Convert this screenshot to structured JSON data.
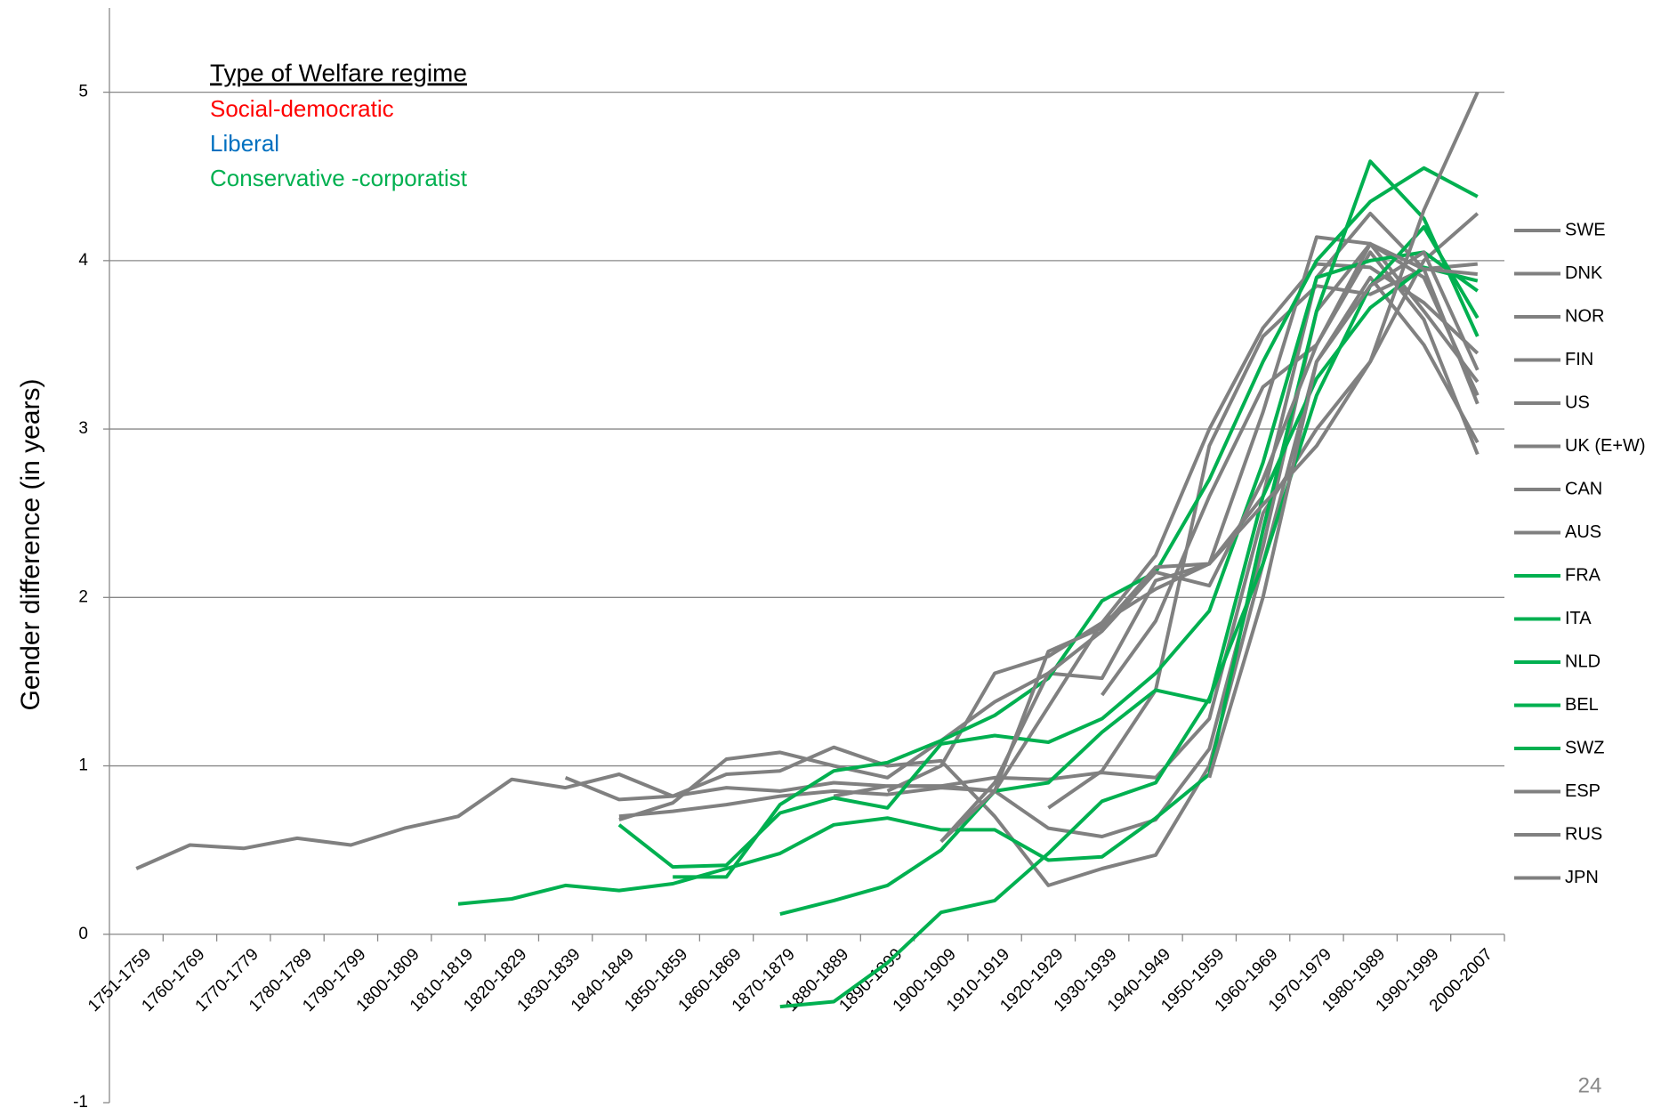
{
  "chart_data": {
    "type": "line",
    "y_label": "Gender difference (in years)",
    "legend_title": "Type of Welfare regime",
    "annotations": [
      {
        "text": "Social-democratic",
        "color": "#ff0000"
      },
      {
        "text": "Liberal",
        "color": "#0070c0"
      },
      {
        "text": "Conservative -corporatist",
        "color": "#00b050"
      }
    ],
    "page_number": "24",
    "categories": [
      "1751-1759",
      "1760-1769",
      "1770-1779",
      "1780-1789",
      "1790-1799",
      "1800-1809",
      "1810-1819",
      "1820-1829",
      "1830-1839",
      "1840-1849",
      "1850-1859",
      "1860-1869",
      "1870-1879",
      "1880-1889",
      "1890-1899",
      "1900-1909",
      "1910-1919",
      "1920-1929",
      "1930-1939",
      "1940-1949",
      "1950-1959",
      "1960-1969",
      "1970-1979",
      "1980-1989",
      "1990-1999",
      "2000-2007"
    ],
    "ylim": [
      -1,
      5.5
    ],
    "yticks": [
      -1,
      0,
      1,
      2,
      3,
      4,
      5
    ],
    "grid": true,
    "legend_position": "right",
    "series": [
      {
        "name": "SWE",
        "color": "#808080",
        "values": [
          0.39,
          0.53,
          0.51,
          0.57,
          0.53,
          0.63,
          0.7,
          0.92,
          0.87,
          0.95,
          0.82,
          0.87,
          0.85,
          0.9,
          0.88,
          0.88,
          0.93,
          0.92,
          0.96,
          0.93,
          1.28,
          2.5,
          3.0,
          3.4,
          4.0,
          4.28
        ]
      },
      {
        "name": "DNK",
        "color": "#808080",
        "values": [
          null,
          null,
          null,
          null,
          null,
          null,
          null,
          null,
          0.93,
          0.8,
          0.82,
          0.95,
          0.97,
          1.11,
          1.0,
          1.03,
          0.7,
          0.29,
          0.39,
          0.47,
          1.0,
          2.2,
          3.4,
          3.9,
          3.5,
          2.92
        ]
      },
      {
        "name": "NOR",
        "color": "#808080",
        "values": [
          null,
          null,
          null,
          null,
          null,
          null,
          null,
          null,
          null,
          0.7,
          0.73,
          0.77,
          0.82,
          0.85,
          0.83,
          0.87,
          0.85,
          0.63,
          0.58,
          0.68,
          1.1,
          2.3,
          3.7,
          4.1,
          3.7,
          3.28
        ]
      },
      {
        "name": "FIN",
        "color": "#808080",
        "values": [
          null,
          null,
          null,
          null,
          null,
          null,
          null,
          null,
          null,
          0.68,
          0.78,
          1.04,
          1.08,
          1.0,
          0.93,
          1.15,
          1.38,
          1.55,
          1.52,
          2.1,
          2.2,
          3.1,
          4.14,
          4.1,
          3.9,
          3.2
        ]
      },
      {
        "name": "US",
        "color": "#808080",
        "values": [
          null,
          null,
          null,
          null,
          null,
          null,
          null,
          null,
          null,
          null,
          null,
          null,
          null,
          null,
          0.85,
          1.0,
          1.55,
          1.65,
          1.85,
          2.25,
          3.0,
          3.6,
          3.98,
          3.96,
          3.75,
          3.45
        ]
      },
      {
        "name": "UK (E+W)",
        "color": "#808080",
        "values": [
          null,
          null,
          null,
          null,
          null,
          null,
          null,
          null,
          null,
          null,
          null,
          null,
          null,
          0.82,
          0.88,
          0.88,
          0.85,
          1.35,
          1.85,
          2.05,
          2.2,
          2.6,
          3.9,
          4.28,
          3.95,
          3.15
        ]
      },
      {
        "name": "CAN",
        "color": "#808080",
        "values": [
          null,
          null,
          null,
          null,
          null,
          null,
          null,
          null,
          null,
          null,
          null,
          null,
          null,
          null,
          null,
          null,
          null,
          0.75,
          0.97,
          1.45,
          2.9,
          3.55,
          3.85,
          3.8,
          3.95,
          3.98
        ]
      },
      {
        "name": "AUS",
        "color": "#808080",
        "values": [
          null,
          null,
          null,
          null,
          null,
          null,
          null,
          null,
          null,
          null,
          null,
          null,
          null,
          null,
          null,
          null,
          null,
          null,
          1.42,
          1.86,
          2.6,
          3.25,
          3.5,
          4.05,
          3.65,
          2.85
        ]
      },
      {
        "name": "FRA",
        "color": "#00b050",
        "values": [
          null,
          null,
          null,
          null,
          null,
          null,
          0.18,
          0.21,
          0.29,
          0.26,
          0.3,
          0.39,
          0.48,
          0.65,
          0.69,
          0.62,
          0.62,
          0.44,
          0.46,
          0.69,
          0.95,
          2.4,
          3.7,
          4.59,
          4.25,
          3.55
        ]
      },
      {
        "name": "ITA",
        "color": "#00b050",
        "values": [
          null,
          null,
          null,
          null,
          null,
          null,
          null,
          null,
          null,
          null,
          null,
          null,
          -0.43,
          -0.4,
          -0.17,
          0.13,
          0.2,
          0.48,
          0.79,
          0.9,
          1.4,
          2.2,
          3.2,
          3.85,
          4.2,
          3.66
        ]
      },
      {
        "name": "NLD",
        "color": "#00b050",
        "values": [
          null,
          null,
          null,
          null,
          null,
          null,
          null,
          null,
          null,
          0.65,
          0.4,
          0.41,
          0.72,
          0.81,
          0.75,
          1.13,
          1.18,
          1.14,
          1.28,
          1.55,
          1.92,
          2.8,
          3.9,
          4.0,
          4.05,
          3.82
        ]
      },
      {
        "name": "BEL",
        "color": "#00b050",
        "values": [
          null,
          null,
          null,
          null,
          null,
          null,
          null,
          null,
          null,
          null,
          null,
          null,
          0.12,
          0.2,
          0.29,
          0.5,
          0.85,
          0.9,
          1.2,
          1.45,
          1.38,
          2.6,
          3.3,
          3.72,
          3.96,
          3.88
        ]
      },
      {
        "name": "SWZ",
        "color": "#00b050",
        "values": [
          null,
          null,
          null,
          null,
          null,
          null,
          null,
          null,
          null,
          null,
          0.34,
          0.34,
          0.77,
          0.97,
          1.02,
          1.15,
          1.3,
          1.52,
          1.98,
          2.15,
          2.7,
          3.4,
          4.0,
          4.35,
          4.55,
          4.38
        ]
      },
      {
        "name": "ESP",
        "color": "#808080",
        "values": [
          null,
          null,
          null,
          null,
          null,
          null,
          null,
          null,
          null,
          null,
          null,
          null,
          null,
          null,
          null,
          0.55,
          0.9,
          1.55,
          1.8,
          2.15,
          2.07,
          2.7,
          3.5,
          4.1,
          3.95,
          3.92
        ]
      },
      {
        "name": "RUS",
        "color": "#808080",
        "values": [
          null,
          null,
          null,
          null,
          null,
          null,
          null,
          null,
          null,
          null,
          null,
          null,
          null,
          null,
          null,
          0.55,
          0.85,
          1.68,
          1.82,
          2.18,
          2.2,
          2.55,
          2.9,
          3.4,
          4.3,
          5.0
        ]
      },
      {
        "name": "JPN",
        "color": "#808080",
        "values": [
          null,
          null,
          null,
          null,
          null,
          null,
          null,
          null,
          null,
          null,
          null,
          null,
          null,
          null,
          null,
          null,
          null,
          null,
          null,
          null,
          0.93,
          2.0,
          3.4,
          3.85,
          4.05,
          3.35
        ]
      }
    ]
  }
}
